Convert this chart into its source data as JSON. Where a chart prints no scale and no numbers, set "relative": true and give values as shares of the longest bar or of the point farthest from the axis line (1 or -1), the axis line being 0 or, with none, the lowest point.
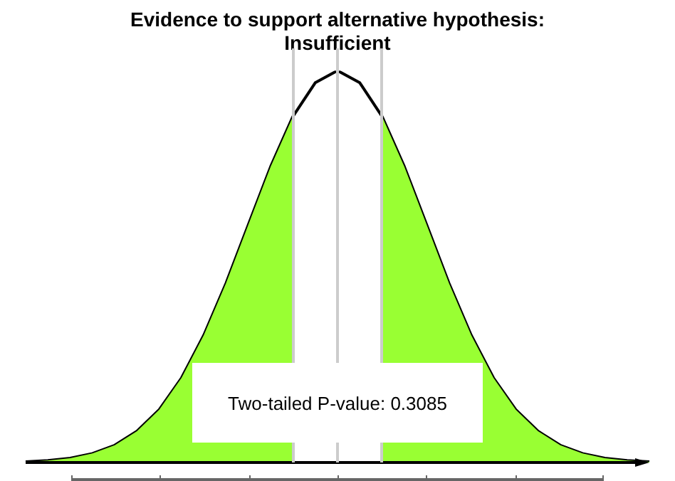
{
  "chart_data": {
    "type": "line",
    "title": "Evidence to support alternative hypothesis:\nInsufficient",
    "relative": true,
    "legend": false,
    "marker": "none",
    "line_style": "solid",
    "categories": [
      null,
      null,
      null,
      null,
      null,
      null,
      null,
      null,
      null,
      null,
      null,
      null,
      null,
      null,
      null,
      null,
      null,
      null,
      null,
      null,
      null,
      null,
      null,
      null,
      null,
      null,
      null,
      null,
      null
    ],
    "series": [
      {
        "type": "area",
        "color": "#99ff33",
        "values": [
          0.002,
          0.005,
          0.011,
          0.023,
          0.044,
          0.08,
          0.135,
          0.216,
          0.325,
          0.458,
          0.607,
          0.755,
          0.883,
          null,
          null,
          null,
          null,
          null,
          null,
          null,
          null,
          null,
          null,
          null,
          null,
          null,
          null,
          null,
          null
        ]
      },
      {
        "type": "area",
        "color": "#99ff33",
        "values": [
          null,
          null,
          null,
          null,
          null,
          null,
          null,
          null,
          null,
          null,
          null,
          null,
          null,
          null,
          null,
          null,
          0.883,
          0.755,
          0.607,
          0.458,
          0.325,
          0.216,
          0.135,
          0.08,
          0.044,
          0.023,
          0.011,
          0.005,
          0.002
        ]
      },
      {
        "type": "line",
        "color": "#000000",
        "values": [
          0.002,
          0.005,
          0.011,
          0.023,
          0.044,
          0.08,
          0.135,
          0.216,
          0.325,
          0.458,
          0.607,
          0.755,
          0.883,
          0.969,
          1,
          0.969,
          0.883,
          0.755,
          0.607,
          0.458,
          0.325,
          0.216,
          0.135,
          0.08,
          0.044,
          0.023,
          0.011,
          0.005,
          0.002
        ]
      }
    ],
    "annotations": [
      "Two-tailed P-value: 0.3085"
    ]
  }
}
